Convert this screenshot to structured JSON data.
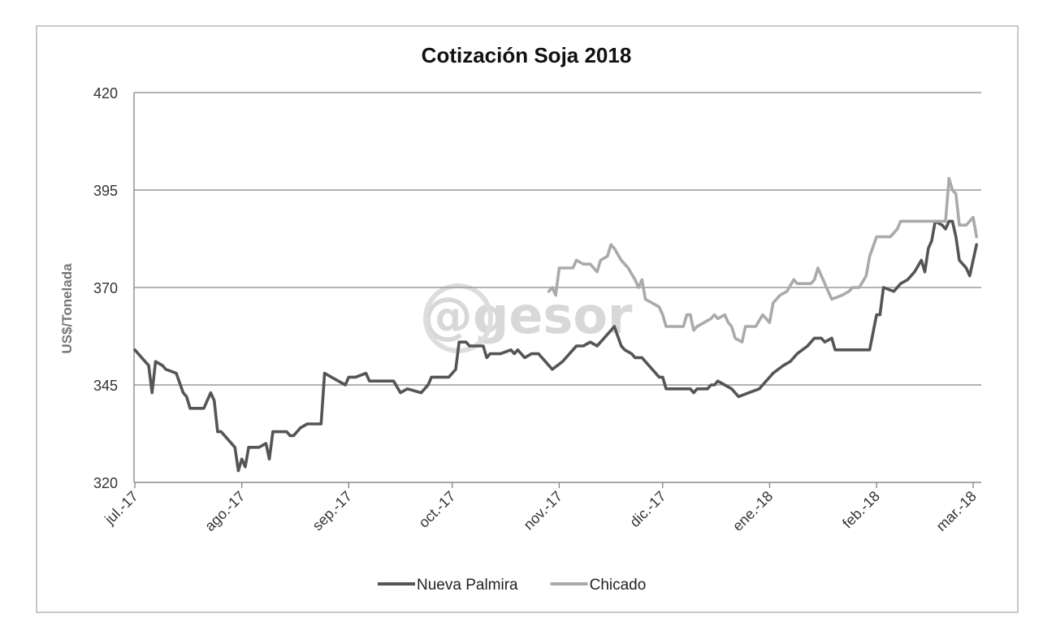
{
  "chart_data": {
    "type": "line",
    "title": "Cotización Soja 2018",
    "xlabel": "",
    "ylabel": "US$/Tonelada",
    "ylim": [
      320,
      420
    ],
    "yticks": [
      320,
      345,
      370,
      395,
      420
    ],
    "xticks": [
      "jul.-17",
      "ago.-17",
      "sep.-17",
      "oct.-17",
      "nov.-17",
      "dic.-17",
      "ene.-18",
      "feb.-18",
      "mar.-18"
    ],
    "xlim": [
      "2017-07-01",
      "2018-03-01"
    ],
    "grid": "horizontal",
    "legend_position": "bottom",
    "watermark": "@gesor",
    "colors": {
      "Nueva Palmira": "#555555",
      "Chicado": "#aaaaaa"
    },
    "series": [
      {
        "name": "Nueva Palmira",
        "points": [
          [
            "2017-07-01",
            354
          ],
          [
            "2017-07-02",
            353
          ],
          [
            "2017-07-03",
            352
          ],
          [
            "2017-07-04",
            351
          ],
          [
            "2017-07-05",
            350
          ],
          [
            "2017-07-06",
            343
          ],
          [
            "2017-07-07",
            351
          ],
          [
            "2017-07-09",
            350
          ],
          [
            "2017-07-10",
            349
          ],
          [
            "2017-07-13",
            348
          ],
          [
            "2017-07-15",
            343
          ],
          [
            "2017-07-16",
            342
          ],
          [
            "2017-07-17",
            339
          ],
          [
            "2017-07-21",
            339
          ],
          [
            "2017-07-23",
            343
          ],
          [
            "2017-07-24",
            341
          ],
          [
            "2017-07-25",
            333
          ],
          [
            "2017-07-26",
            333
          ],
          [
            "2017-07-28",
            331
          ],
          [
            "2017-07-30",
            329
          ],
          [
            "2017-07-31",
            323
          ],
          [
            "2017-08-01",
            326
          ],
          [
            "2017-08-02",
            324
          ],
          [
            "2017-08-03",
            329
          ],
          [
            "2017-08-06",
            329
          ],
          [
            "2017-08-08",
            330
          ],
          [
            "2017-08-09",
            326
          ],
          [
            "2017-08-10",
            333
          ],
          [
            "2017-08-14",
            333
          ],
          [
            "2017-08-15",
            332
          ],
          [
            "2017-08-16",
            332
          ],
          [
            "2017-08-18",
            334
          ],
          [
            "2017-08-20",
            335
          ],
          [
            "2017-08-24",
            335
          ],
          [
            "2017-08-25",
            348
          ],
          [
            "2017-08-27",
            347
          ],
          [
            "2017-08-29",
            346
          ],
          [
            "2017-08-31",
            345
          ],
          [
            "2017-09-01",
            347
          ],
          [
            "2017-09-03",
            347
          ],
          [
            "2017-09-06",
            348
          ],
          [
            "2017-09-07",
            346
          ],
          [
            "2017-09-09",
            346
          ],
          [
            "2017-09-14",
            346
          ],
          [
            "2017-09-16",
            343
          ],
          [
            "2017-09-18",
            344
          ],
          [
            "2017-09-22",
            343
          ],
          [
            "2017-09-24",
            345
          ],
          [
            "2017-09-25",
            347
          ],
          [
            "2017-09-28",
            347
          ],
          [
            "2017-09-30",
            347
          ],
          [
            "2017-10-02",
            349
          ],
          [
            "2017-10-03",
            356
          ],
          [
            "2017-10-05",
            356
          ],
          [
            "2017-10-06",
            355
          ],
          [
            "2017-10-09",
            355
          ],
          [
            "2017-10-10",
            355
          ],
          [
            "2017-10-11",
            352
          ],
          [
            "2017-10-12",
            353
          ],
          [
            "2017-10-15",
            353
          ],
          [
            "2017-10-18",
            354
          ],
          [
            "2017-10-19",
            353
          ],
          [
            "2017-10-20",
            354
          ],
          [
            "2017-10-22",
            352
          ],
          [
            "2017-10-24",
            353
          ],
          [
            "2017-10-26",
            353
          ],
          [
            "2017-10-28",
            351
          ],
          [
            "2017-10-30",
            349
          ],
          [
            "2017-11-02",
            351
          ],
          [
            "2017-11-04",
            353
          ],
          [
            "2017-11-06",
            355
          ],
          [
            "2017-11-08",
            355
          ],
          [
            "2017-11-10",
            356
          ],
          [
            "2017-11-12",
            355
          ],
          [
            "2017-11-14",
            357
          ],
          [
            "2017-11-16",
            359
          ],
          [
            "2017-11-17",
            360
          ],
          [
            "2017-11-19",
            355
          ],
          [
            "2017-11-20",
            354
          ],
          [
            "2017-11-22",
            353
          ],
          [
            "2017-11-23",
            352
          ],
          [
            "2017-11-25",
            352
          ],
          [
            "2017-11-28",
            349
          ],
          [
            "2017-11-30",
            347
          ],
          [
            "2017-12-01",
            347
          ],
          [
            "2017-12-02",
            344
          ],
          [
            "2017-12-06",
            344
          ],
          [
            "2017-12-08",
            344
          ],
          [
            "2017-12-09",
            344
          ],
          [
            "2017-12-10",
            343
          ],
          [
            "2017-12-11",
            344
          ],
          [
            "2017-12-14",
            344
          ],
          [
            "2017-12-15",
            345
          ],
          [
            "2017-12-16",
            345
          ],
          [
            "2017-12-17",
            346
          ],
          [
            "2017-12-19",
            345
          ],
          [
            "2017-12-21",
            344
          ],
          [
            "2017-12-23",
            342
          ],
          [
            "2017-12-26",
            343
          ],
          [
            "2017-12-29",
            344
          ],
          [
            "2018-01-02",
            348
          ],
          [
            "2018-01-05",
            350
          ],
          [
            "2018-01-07",
            351
          ],
          [
            "2018-01-09",
            353
          ],
          [
            "2018-01-12",
            355
          ],
          [
            "2018-01-14",
            357
          ],
          [
            "2018-01-16",
            357
          ],
          [
            "2018-01-17",
            356
          ],
          [
            "2018-01-19",
            357
          ],
          [
            "2018-01-20",
            354
          ],
          [
            "2018-01-25",
            354
          ],
          [
            "2018-01-28",
            354
          ],
          [
            "2018-01-30",
            354
          ],
          [
            "2018-02-01",
            363
          ],
          [
            "2018-02-02",
            363
          ],
          [
            "2018-02-03",
            370
          ],
          [
            "2018-02-06",
            369
          ],
          [
            "2018-02-08",
            371
          ],
          [
            "2018-02-10",
            372
          ],
          [
            "2018-02-12",
            374
          ],
          [
            "2018-02-14",
            377
          ],
          [
            "2018-02-15",
            374
          ],
          [
            "2018-02-16",
            380
          ],
          [
            "2018-02-17",
            382
          ],
          [
            "2018-02-18",
            387
          ],
          [
            "2018-02-20",
            386
          ],
          [
            "2018-02-21",
            385
          ],
          [
            "2018-02-22",
            387
          ],
          [
            "2018-02-23",
            387
          ],
          [
            "2018-02-24",
            383
          ],
          [
            "2018-02-25",
            377
          ],
          [
            "2018-02-27",
            375
          ],
          [
            "2018-02-28",
            373
          ],
          [
            "2018-03-02",
            381
          ]
        ]
      },
      {
        "name": "Chicado",
        "points": [
          [
            "2017-10-29",
            369
          ],
          [
            "2017-10-30",
            370
          ],
          [
            "2017-10-31",
            368
          ],
          [
            "2017-11-01",
            375
          ],
          [
            "2017-11-05",
            375
          ],
          [
            "2017-11-06",
            377
          ],
          [
            "2017-11-08",
            376
          ],
          [
            "2017-11-10",
            376
          ],
          [
            "2017-11-12",
            374
          ],
          [
            "2017-11-13",
            377
          ],
          [
            "2017-11-15",
            378
          ],
          [
            "2017-11-16",
            381
          ],
          [
            "2017-11-17",
            380
          ],
          [
            "2017-11-19",
            377
          ],
          [
            "2017-11-21",
            375
          ],
          [
            "2017-11-23",
            372
          ],
          [
            "2017-11-24",
            370
          ],
          [
            "2017-11-25",
            372
          ],
          [
            "2017-11-26",
            367
          ],
          [
            "2017-11-28",
            366
          ],
          [
            "2017-11-30",
            365
          ],
          [
            "2017-12-01",
            363
          ],
          [
            "2017-12-02",
            360
          ],
          [
            "2017-12-05",
            360
          ],
          [
            "2017-12-07",
            360
          ],
          [
            "2017-12-08",
            363
          ],
          [
            "2017-12-09",
            363
          ],
          [
            "2017-12-10",
            359
          ],
          [
            "2017-12-11",
            360
          ],
          [
            "2017-12-13",
            361
          ],
          [
            "2017-12-15",
            362
          ],
          [
            "2017-12-16",
            363
          ],
          [
            "2017-12-17",
            362
          ],
          [
            "2017-12-19",
            363
          ],
          [
            "2017-12-20",
            361
          ],
          [
            "2017-12-21",
            360
          ],
          [
            "2017-12-22",
            357
          ],
          [
            "2017-12-24",
            356
          ],
          [
            "2017-12-25",
            360
          ],
          [
            "2017-12-28",
            360
          ],
          [
            "2017-12-30",
            363
          ],
          [
            "2018-01-01",
            361
          ],
          [
            "2018-01-02",
            366
          ],
          [
            "2018-01-04",
            368
          ],
          [
            "2018-01-06",
            369
          ],
          [
            "2018-01-08",
            372
          ],
          [
            "2018-01-09",
            371
          ],
          [
            "2018-01-12",
            371
          ],
          [
            "2018-01-13",
            371
          ],
          [
            "2018-01-14",
            372
          ],
          [
            "2018-01-15",
            375
          ],
          [
            "2018-01-17",
            371
          ],
          [
            "2018-01-18",
            369
          ],
          [
            "2018-01-19",
            367
          ],
          [
            "2018-01-22",
            368
          ],
          [
            "2018-01-24",
            369
          ],
          [
            "2018-01-25",
            370
          ],
          [
            "2018-01-27",
            370
          ],
          [
            "2018-01-29",
            373
          ],
          [
            "2018-01-30",
            378
          ],
          [
            "2018-02-01",
            383
          ],
          [
            "2018-02-05",
            383
          ],
          [
            "2018-02-07",
            385
          ],
          [
            "2018-02-08",
            387
          ],
          [
            "2018-02-14",
            387
          ],
          [
            "2018-02-15",
            387
          ],
          [
            "2018-02-17",
            387
          ],
          [
            "2018-02-21",
            387
          ],
          [
            "2018-02-22",
            398
          ],
          [
            "2018-02-23",
            395
          ],
          [
            "2018-02-24",
            394
          ],
          [
            "2018-02-25",
            386
          ],
          [
            "2018-02-27",
            386
          ],
          [
            "2018-02-28",
            387
          ],
          [
            "2018-03-01",
            388
          ],
          [
            "2018-03-02",
            383
          ]
        ]
      }
    ]
  }
}
